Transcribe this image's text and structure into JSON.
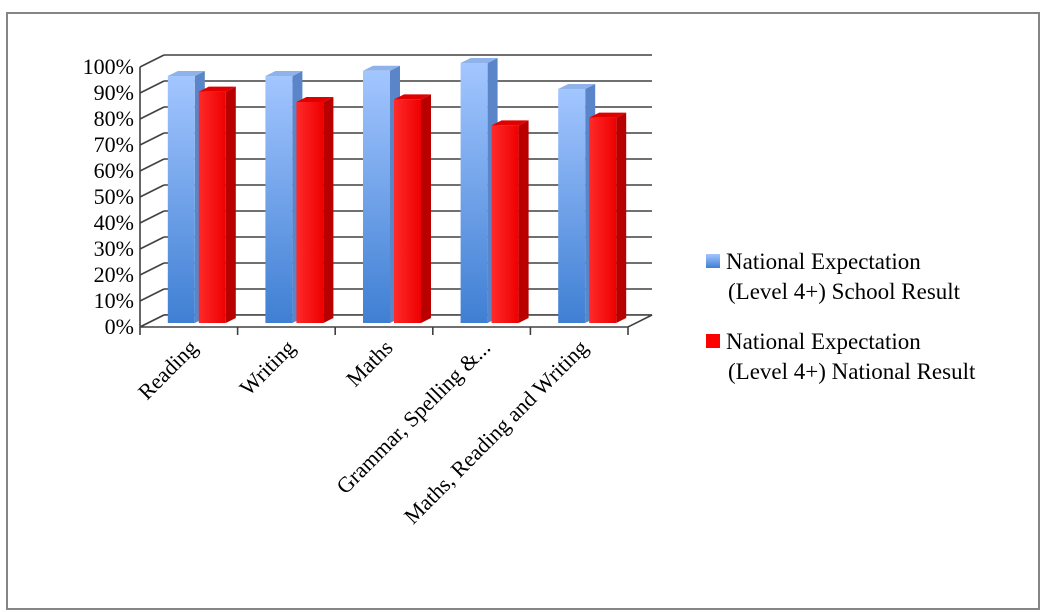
{
  "chart_data": {
    "type": "bar",
    "categories": [
      "Reading",
      "Writing",
      "Maths",
      "Grammar, Spelling &...",
      "Maths, Reading and Writing"
    ],
    "series": [
      {
        "name_lines": [
          "National Expectation",
          "(Level 4+) School Result"
        ],
        "values": [
          95,
          95,
          97,
          100,
          90
        ],
        "color": "#6fa3ef"
      },
      {
        "name_lines": [
          "National Expectation",
          "(Level 4+) National Result"
        ],
        "values": [
          89,
          85,
          86,
          76,
          79
        ],
        "color": "#ff0000"
      }
    ],
    "ylim": [
      0,
      100
    ],
    "yticks": [
      "0%",
      "10%",
      "20%",
      "30%",
      "40%",
      "50%",
      "60%",
      "70%",
      "80%",
      "90%",
      "100%"
    ],
    "grid": true,
    "legend_position": "right",
    "style": "3d-column"
  }
}
